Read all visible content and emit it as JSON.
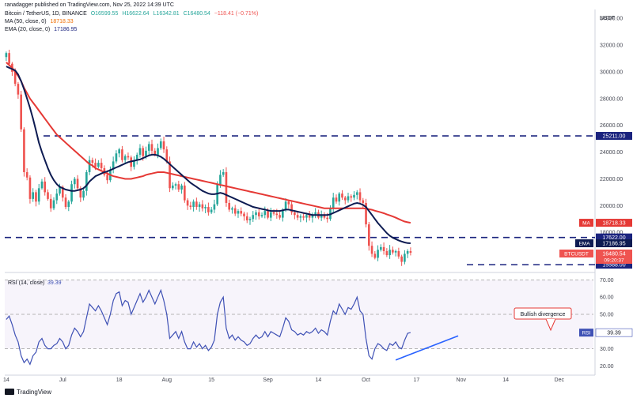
{
  "header": {
    "publisher": "ranadagger published on TradingView.com, Nov 25, 2022 14:39 UTC",
    "symbol": "Bitcoin / TetherUS, 1D, BINANCE",
    "open": "O16599.55",
    "high": "H16622.64",
    "low": "L16342.81",
    "close": "C16480.54",
    "change": "−118.41 (−0.71%)",
    "ma_label": "MA (50, close, 0)",
    "ma_value": "18718.33",
    "ema_label": "EMA (20, close, 0)",
    "ema_value": "17186.95"
  },
  "brand": "TradingView",
  "colors": {
    "up": "#26a69a",
    "down": "#ef5350",
    "ma": "#e53935",
    "ema": "#0d1b52",
    "level": "#1a237e",
    "rsi": "#3f51b5",
    "trendline": "#2962ff"
  },
  "chart_data": [
    {
      "type": "candlestick",
      "title": "Bitcoin / TetherUS, 1D, BINANCE",
      "currency_label": "USDT",
      "yticks": [
        "34000.00",
        "32000.00",
        "30000.00",
        "28000.00",
        "26000.00",
        "24000.00",
        "22000.00",
        "20000.00",
        "18000.00"
      ],
      "ylim": [
        15300,
        34300
      ],
      "x_tick_labels": [
        "14",
        "Jul",
        "18",
        "Aug",
        "15",
        "Sep",
        "14",
        "Oct",
        "17",
        "Nov",
        "14",
        "Dec"
      ],
      "x_tick_index": [
        0,
        19,
        38,
        54,
        69,
        88,
        105,
        121,
        138,
        153,
        168,
        186
      ],
      "horizontal_levels": [
        {
          "value": 25211,
          "label": "25211.00"
        },
        {
          "value": 17622,
          "label": "17622.00"
        },
        {
          "value": 15588,
          "label": "15588.00"
        }
      ],
      "price_tags": [
        {
          "name": "MA",
          "value": 18718.33,
          "label": "18718.33"
        },
        {
          "name": "EMA",
          "value": 17186.95,
          "label": "17186.95"
        },
        {
          "name": "BTCUSDT",
          "value": 16480.54,
          "label": "16480.54",
          "sub": "09:20:37"
        }
      ],
      "series": [
        {
          "name": "MA (50, close, 0)",
          "kind": "line"
        },
        {
          "name": "EMA (20, close, 0)",
          "kind": "line"
        }
      ],
      "closes": [
        31400,
        30600,
        30000,
        29100,
        28300,
        25700,
        22500,
        22100,
        20500,
        21000,
        20300,
        21300,
        21800,
        21000,
        20500,
        19800,
        20400,
        20900,
        21400,
        20600,
        19900,
        20300,
        21600,
        22000,
        21300,
        20600,
        21100,
        22500,
        23400,
        23200,
        22900,
        23200,
        22800,
        22300,
        21900,
        22700,
        23300,
        23900,
        24200,
        23400,
        23700,
        23600,
        22900,
        23400,
        23800,
        24300,
        23700,
        24100,
        24600,
        24100,
        23800,
        24300,
        24800,
        24200,
        23300,
        21300,
        21500,
        21600,
        21200,
        21500,
        20400,
        20000,
        19900,
        20300,
        19900,
        20100,
        19800,
        19900,
        19500,
        19700,
        20100,
        21600,
        22300,
        22500,
        20200,
        19700,
        19800,
        19400,
        19600,
        19400,
        19200,
        18900,
        19000,
        19300,
        19500,
        19200,
        19300,
        19600,
        19100,
        19500,
        19400,
        19300,
        19100,
        19700,
        20300,
        20100,
        19500,
        19300,
        19100,
        19200,
        19100,
        19300,
        19100,
        19300,
        19500,
        19100,
        19300,
        19100,
        19000,
        19800,
        20600,
        20300,
        20900,
        20600,
        20400,
        20700,
        20600,
        20800,
        21000,
        20400,
        20200,
        18600,
        17000,
        16400,
        16100,
        16700,
        16900,
        16600,
        16300,
        16700,
        16500,
        16600,
        16200,
        15800,
        16400,
        16600,
        16480
      ],
      "ma_values": [
        30700,
        30500,
        30300,
        30000,
        29700,
        29300,
        28800,
        28400,
        28000,
        27700,
        27400,
        27100,
        26800,
        26500,
        26200,
        25900,
        25600,
        25300,
        25100,
        24900,
        24700,
        24500,
        24300,
        24100,
        23900,
        23700,
        23500,
        23300,
        23100,
        23000,
        22800,
        22700,
        22600,
        22500,
        22400,
        22300,
        22200,
        22150,
        22100,
        22050,
        22000,
        22000,
        22000,
        22050,
        22100,
        22150,
        22200,
        22300,
        22350,
        22400,
        22450,
        22500,
        22500,
        22500,
        22450,
        22400,
        22350,
        22300,
        22250,
        22200,
        22150,
        22100,
        22050,
        22000,
        21950,
        21900,
        21850,
        21800,
        21750,
        21700,
        21650,
        21600,
        21550,
        21500,
        21450,
        21400,
        21350,
        21300,
        21250,
        21200,
        21150,
        21100,
        21050,
        21000,
        20950,
        20900,
        20850,
        20800,
        20750,
        20700,
        20650,
        20600,
        20550,
        20500,
        20450,
        20400,
        20350,
        20300,
        20250,
        20200,
        20150,
        20100,
        20050,
        20000,
        19950,
        19900,
        19850,
        19800,
        19800,
        19800,
        19800,
        19800,
        19800,
        19800,
        19800,
        19800,
        19800,
        19800,
        19800,
        19800,
        19800,
        19780,
        19740,
        19690,
        19620,
        19560,
        19500,
        19430,
        19350,
        19270,
        19190,
        19100,
        19000,
        18900,
        18810,
        18760,
        18718.33
      ],
      "ema_values": [
        30400,
        30300,
        30200,
        30100,
        29800,
        29300,
        28700,
        28000,
        27300,
        26500,
        25600,
        24700,
        24000,
        23400,
        22800,
        22300,
        21900,
        21600,
        21400,
        21300,
        21200,
        21150,
        21100,
        21100,
        21150,
        21200,
        21300,
        21500,
        21800,
        22000,
        22200,
        22300,
        22400,
        22500,
        22550,
        22650,
        22750,
        22850,
        22950,
        23050,
        23150,
        23250,
        23300,
        23350,
        23400,
        23450,
        23550,
        23650,
        23750,
        23800,
        23800,
        23750,
        23650,
        23500,
        23300,
        23100,
        22900,
        22700,
        22500,
        22300,
        22100,
        21900,
        21700,
        21550,
        21400,
        21250,
        21100,
        21000,
        20900,
        20850,
        20850,
        20900,
        20950,
        20900,
        20800,
        20700,
        20600,
        20500,
        20400,
        20300,
        20200,
        20100,
        20000,
        19900,
        19850,
        19800,
        19750,
        19700,
        19650,
        19600,
        19600,
        19600,
        19600,
        19650,
        19700,
        19700,
        19650,
        19600,
        19550,
        19500,
        19450,
        19400,
        19350,
        19300,
        19300,
        19300,
        19300,
        19300,
        19300,
        19350,
        19450,
        19550,
        19650,
        19750,
        19850,
        19950,
        20050,
        20150,
        20200,
        20150,
        20050,
        19900,
        19600,
        19300,
        19000,
        18700,
        18450,
        18200,
        17950,
        17750,
        17600,
        17500,
        17400,
        17320,
        17250,
        17200,
        17186.95
      ]
    },
    {
      "type": "line",
      "title": "RSI (14, close)",
      "series_name": "RSI",
      "current_value": "39.39",
      "yticks": [
        "70.00",
        "60.00",
        "50.00",
        "40.00",
        "30.00",
        "20.00"
      ],
      "ylim": [
        17,
        72
      ],
      "bands": [
        70,
        50,
        30
      ],
      "values": [
        47,
        49,
        44,
        38,
        34,
        26,
        22,
        24,
        21,
        26,
        28,
        34,
        36,
        32,
        30,
        30,
        32,
        33,
        36,
        34,
        30,
        32,
        38,
        42,
        40,
        37,
        40,
        48,
        56,
        54,
        52,
        55,
        52,
        48,
        44,
        50,
        58,
        62,
        63,
        55,
        58,
        57,
        50,
        54,
        58,
        62,
        57,
        60,
        64,
        60,
        56,
        60,
        64,
        58,
        50,
        36,
        38,
        40,
        36,
        40,
        34,
        30,
        30,
        34,
        31,
        33,
        30,
        32,
        29,
        31,
        35,
        50,
        57,
        60,
        42,
        36,
        38,
        35,
        37,
        35,
        34,
        32,
        33,
        36,
        38,
        36,
        37,
        40,
        37,
        40,
        39,
        38,
        37,
        42,
        48,
        46,
        41,
        40,
        38,
        39,
        38,
        40,
        39,
        40,
        42,
        39,
        41,
        40,
        38,
        46,
        52,
        50,
        56,
        53,
        50,
        54,
        53,
        56,
        60,
        52,
        50,
        36,
        26,
        24,
        30,
        33,
        32,
        30,
        29,
        33,
        32,
        34,
        31,
        30,
        35,
        39,
        39.39
      ],
      "annotation": "Bullish divergence",
      "trendline": {
        "from": [
          131,
          23.5
        ],
        "to": [
          152,
          37.5
        ]
      }
    }
  ]
}
